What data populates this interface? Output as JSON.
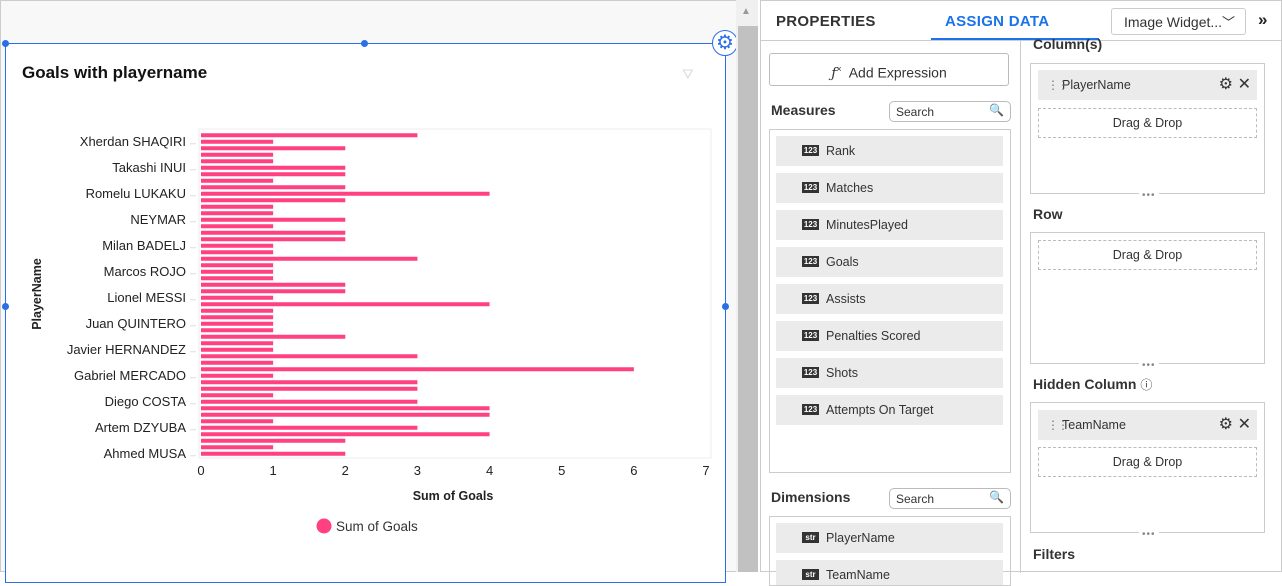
{
  "widget": {
    "title": "Goals with playername",
    "filter_icon": "filter-icon",
    "settings_icon": "gear-icon"
  },
  "chart_data": {
    "type": "bar",
    "orientation": "horizontal",
    "xlabel": "Sum of Goals",
    "ylabel": "PlayerName",
    "xlim": [
      0,
      7
    ],
    "xticks": [
      0,
      1,
      2,
      3,
      4,
      5,
      6,
      7
    ],
    "visible_category_labels_bottom_to_top": [
      "Ahmed MUSA",
      "Artem DZYUBA",
      "Diego COSTA",
      "Gabriel MERCADO",
      "Javier HERNANDEZ",
      "Juan QUINTERO",
      "Lionel MESSI",
      "Marcos ROJO",
      "Milan BADELJ",
      "NEYMAR",
      "Romelu LUKAKU",
      "Takashi INUI",
      "Xherdan SHAQIRI"
    ],
    "label_every_n_bars": 4,
    "values_top_to_bottom": [
      3,
      1,
      2,
      1,
      1,
      2,
      2,
      1,
      2,
      4,
      2,
      1,
      1,
      2,
      1,
      2,
      2,
      1,
      1,
      3,
      1,
      1,
      1,
      2,
      2,
      1,
      4,
      1,
      1,
      1,
      1,
      2,
      1,
      1,
      3,
      1,
      6,
      1,
      3,
      3,
      1,
      3,
      4,
      4,
      1,
      3,
      4,
      2,
      1,
      2
    ],
    "series": [
      {
        "name": "Sum of Goals",
        "color": "#ff4081"
      }
    ],
    "legend": "bottom",
    "grid": false
  },
  "panel": {
    "tabs": [
      {
        "label": "PROPERTIES"
      },
      {
        "label": "ASSIGN DATA",
        "active": true
      }
    ],
    "widget_select": "Image Widget...",
    "add_expression": "Add Expression",
    "measures": {
      "title": "Measures",
      "search_placeholder": "Search",
      "items": [
        "Rank",
        "Matches",
        "MinutesPlayed",
        "Goals",
        "Assists",
        "Penalties Scored",
        "Shots",
        "Attempts On Target"
      ],
      "badge": "123"
    },
    "dimensions": {
      "title": "Dimensions",
      "search_placeholder": "Search",
      "items": [
        "PlayerName",
        "TeamName"
      ],
      "badge": "str"
    },
    "columns": {
      "title": "Column(s)",
      "items": [
        "PlayerName"
      ],
      "drop": "Drag & Drop"
    },
    "row": {
      "title": "Row",
      "drop": "Drag & Drop"
    },
    "hidden": {
      "title": "Hidden Column",
      "items": [
        "TeamName"
      ],
      "drop": "Drag & Drop"
    },
    "filters": {
      "title": "Filters"
    }
  },
  "colors": {
    "accent": "#1a73e8",
    "bar": "#ff4081",
    "selection": "#2a6ee8"
  }
}
